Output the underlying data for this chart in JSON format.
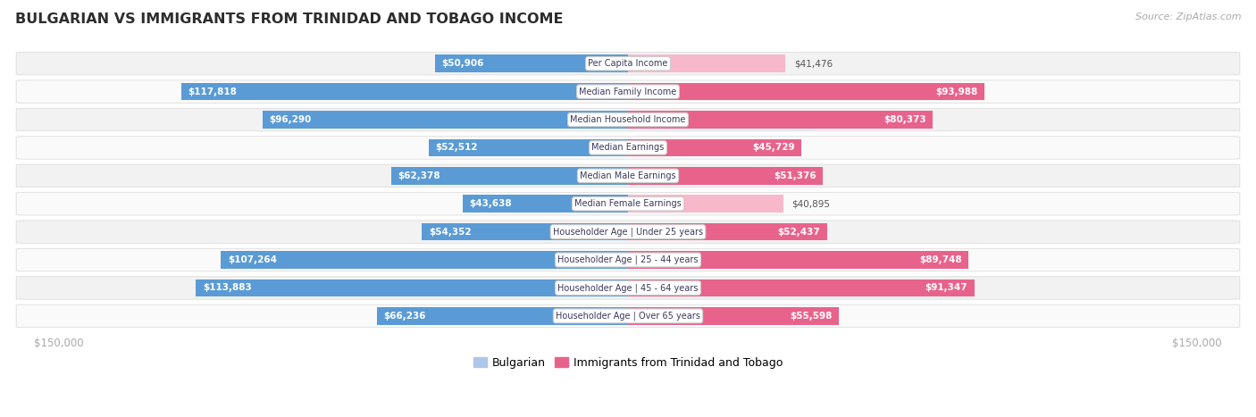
{
  "title": "BULGARIAN VS IMMIGRANTS FROM TRINIDAD AND TOBAGO INCOME",
  "source": "Source: ZipAtlas.com",
  "categories": [
    "Per Capita Income",
    "Median Family Income",
    "Median Household Income",
    "Median Earnings",
    "Median Male Earnings",
    "Median Female Earnings",
    "Householder Age | Under 25 years",
    "Householder Age | 25 - 44 years",
    "Householder Age | 45 - 64 years",
    "Householder Age | Over 65 years"
  ],
  "bulgarian_values": [
    50906,
    117818,
    96290,
    52512,
    62378,
    43638,
    54352,
    107264,
    113883,
    66236
  ],
  "immigrant_values": [
    41476,
    93988,
    80373,
    45729,
    51376,
    40895,
    52437,
    89748,
    91347,
    55598
  ],
  "bulgarian_color_light": "#aec6e8",
  "bulgarian_color_dark": "#5b9bd5",
  "immigrant_color_light": "#f7b8cc",
  "immigrant_color_dark": "#e8638c",
  "max_value": 150000,
  "bg_color": "#ffffff",
  "row_bg_even": "#f2f2f2",
  "row_bg_odd": "#fafafa",
  "row_border": "#dddddd",
  "title_color": "#2d2d2d",
  "axis_label_color": "#aaaaaa",
  "label_outside_color": "#555555",
  "legend_bulgarian": "Bulgarian",
  "legend_immigrant": "Immigrants from Trinidad and Tobago",
  "threshold": 0.28
}
